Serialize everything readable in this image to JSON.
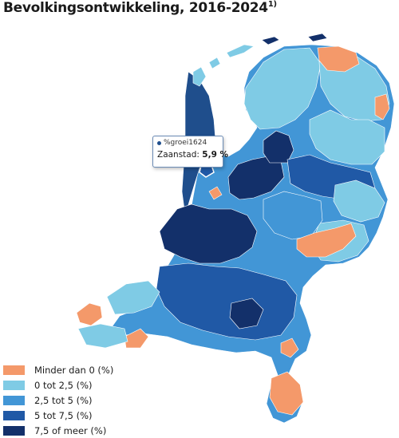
{
  "title": {
    "text": "Bevolkingsontwikkeling, 2016-2024",
    "footnote_marker": "1)"
  },
  "tooltip": {
    "series_name": "%groei1624",
    "region": "Zaanstad:",
    "value": "5,9 %"
  },
  "legend": [
    {
      "label": "Minder dan 0 (%)",
      "color": "#f4996a"
    },
    {
      "label": "0 tot 2,5 (%)",
      "color": "#7fcbe5"
    },
    {
      "label": "2,5 tot 5 (%)",
      "color": "#4296d6"
    },
    {
      "label": "5 tot 7,5 (%)",
      "color": "#2059a6"
    },
    {
      "label": "7,5 of meer (%)",
      "color": "#13306a"
    }
  ]
}
